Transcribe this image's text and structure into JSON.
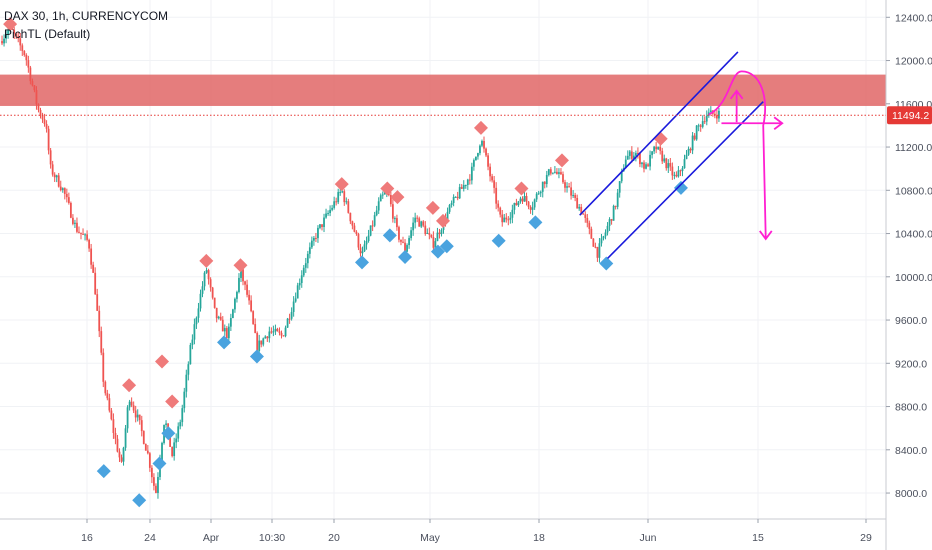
{
  "header": {
    "title": "DAX 30, 1h, CURRENCYCOM",
    "indicator": "PichTL (Default)"
  },
  "colors": {
    "up": "#26a69a",
    "down": "#ef5350",
    "peak_marker": "#ef7a7a",
    "trough_marker": "#4aa3df",
    "resistance_zone": "#e06666",
    "channel": "#1a1adc",
    "projection": "#ff1fd1",
    "last_price_line": "#e53935"
  },
  "chart_data": {
    "type": "candlestick",
    "title": "DAX 30, 1h, CURRENCYCOM",
    "ylim": [
      7760,
      12560
    ],
    "y_ticks": [
      "12400.0",
      "12000.0",
      "11600.0",
      "11200.0",
      "10800.0",
      "10400.0",
      "10000.0",
      "9600.0",
      "9200.0",
      "8800.0",
      "8400.0",
      "8000.0"
    ],
    "x_ticks": [
      "16",
      "24",
      "Apr",
      "10:30",
      "20",
      "May",
      "18",
      "Jun",
      "15",
      "29"
    ],
    "last_price": 11494.2,
    "last_price_label": "11494.2",
    "resistance_zone": [
      11580,
      11870
    ],
    "price_path": [
      [
        0.0,
        12180
      ],
      [
        0.8,
        12300
      ],
      [
        2.0,
        12050
      ],
      [
        3.0,
        11550
      ],
      [
        3.6,
        11420
      ],
      [
        4.0,
        11000
      ],
      [
        5.0,
        10800
      ],
      [
        6.0,
        10450
      ],
      [
        7.0,
        10320
      ],
      [
        7.5,
        9900
      ],
      [
        8.2,
        9000
      ],
      [
        9.0,
        8550
      ],
      [
        9.6,
        8250
      ],
      [
        10.2,
        8900
      ],
      [
        11.0,
        8650
      ],
      [
        11.7,
        8350
      ],
      [
        12.3,
        7990
      ],
      [
        13.0,
        8700
      ],
      [
        13.6,
        8350
      ],
      [
        14.3,
        8700
      ],
      [
        15.0,
        9300
      ],
      [
        15.6,
        9700
      ],
      [
        16.3,
        10080
      ],
      [
        17.0,
        9650
      ],
      [
        18.0,
        9450
      ],
      [
        19.0,
        10050
      ],
      [
        19.6,
        9800
      ],
      [
        20.3,
        9350
      ],
      [
        21.3,
        9500
      ],
      [
        22.3,
        9450
      ],
      [
        23.0,
        9700
      ],
      [
        24.0,
        10100
      ],
      [
        25.0,
        10400
      ],
      [
        26.0,
        10600
      ],
      [
        27.0,
        10800
      ],
      [
        27.8,
        10500
      ],
      [
        28.6,
        10200
      ],
      [
        29.2,
        10400
      ],
      [
        30.0,
        10700
      ],
      [
        30.6,
        10800
      ],
      [
        31.4,
        10400
      ],
      [
        32.0,
        10250
      ],
      [
        32.8,
        10550
      ],
      [
        33.5,
        10450
      ],
      [
        34.2,
        10300
      ],
      [
        34.8,
        10450
      ],
      [
        35.6,
        10650
      ],
      [
        36.4,
        10800
      ],
      [
        37.2,
        10950
      ],
      [
        38.0,
        11280
      ],
      [
        38.8,
        10900
      ],
      [
        39.6,
        10500
      ],
      [
        40.4,
        10600
      ],
      [
        41.2,
        10750
      ],
      [
        42.0,
        10650
      ],
      [
        42.8,
        10850
      ],
      [
        43.6,
        11000
      ],
      [
        44.4,
        10900
      ],
      [
        45.2,
        10750
      ],
      [
        46.0,
        10600
      ],
      [
        46.6,
        10400
      ],
      [
        47.2,
        10220
      ],
      [
        47.8,
        10400
      ],
      [
        48.6,
        10650
      ],
      [
        49.4,
        11100
      ],
      [
        50.2,
        11150
      ],
      [
        51.0,
        11000
      ],
      [
        51.8,
        11200
      ],
      [
        52.6,
        11050
      ],
      [
        53.4,
        10900
      ],
      [
        54.2,
        11100
      ],
      [
        55.0,
        11350
      ],
      [
        55.8,
        11500
      ],
      [
        56.8,
        11510
      ]
    ],
    "pivot_highs": [
      {
        "x": 0.8,
        "y": 12300
      },
      {
        "x": 10.2,
        "y": 8960
      },
      {
        "x": 12.8,
        "y": 9180
      },
      {
        "x": 13.6,
        "y": 8810
      },
      {
        "x": 16.3,
        "y": 10110
      },
      {
        "x": 19.0,
        "y": 10070
      },
      {
        "x": 27.0,
        "y": 10820
      },
      {
        "x": 30.6,
        "y": 10780
      },
      {
        "x": 31.4,
        "y": 10700
      },
      {
        "x": 34.2,
        "y": 10600
      },
      {
        "x": 35.0,
        "y": 10480
      },
      {
        "x": 38.0,
        "y": 11340
      },
      {
        "x": 41.2,
        "y": 10780
      },
      {
        "x": 44.4,
        "y": 11040
      },
      {
        "x": 52.2,
        "y": 11240
      }
    ],
    "pivot_lows": [
      {
        "x": 8.2,
        "y": 8240
      },
      {
        "x": 11.0,
        "y": 7970
      },
      {
        "x": 12.6,
        "y": 8310
      },
      {
        "x": 13.3,
        "y": 8590
      },
      {
        "x": 17.7,
        "y": 9430
      },
      {
        "x": 20.3,
        "y": 9300
      },
      {
        "x": 28.6,
        "y": 10170
      },
      {
        "x": 30.8,
        "y": 10420
      },
      {
        "x": 32.0,
        "y": 10220
      },
      {
        "x": 34.6,
        "y": 10270
      },
      {
        "x": 35.3,
        "y": 10320
      },
      {
        "x": 39.4,
        "y": 10370
      },
      {
        "x": 42.3,
        "y": 10540
      },
      {
        "x": 47.9,
        "y": 10160
      },
      {
        "x": 53.8,
        "y": 10860
      }
    ],
    "channel": [
      {
        "from": [
          45.8,
          10570
        ],
        "to": [
          58.3,
          12080
        ]
      },
      {
        "from": [
          48.0,
          10170
        ],
        "to": [
          60.3,
          11620
        ]
      }
    ],
    "projection": {
      "arc_up": [
        [
          56.0,
          11500
        ],
        [
          57.7,
          11600
        ],
        [
          58.6,
          11900
        ],
        [
          59.8,
          11650
        ],
        [
          60.3,
          11400
        ],
        [
          60.5,
          10350
        ]
      ],
      "arrow_right": [
        [
          57.0,
          11420
        ],
        [
          61.8,
          11420
        ]
      ],
      "arrow_up": [
        [
          58.2,
          11430
        ],
        [
          58.2,
          11720
        ]
      ],
      "arrow_down_tip": [
        60.5,
        10350
      ]
    }
  }
}
